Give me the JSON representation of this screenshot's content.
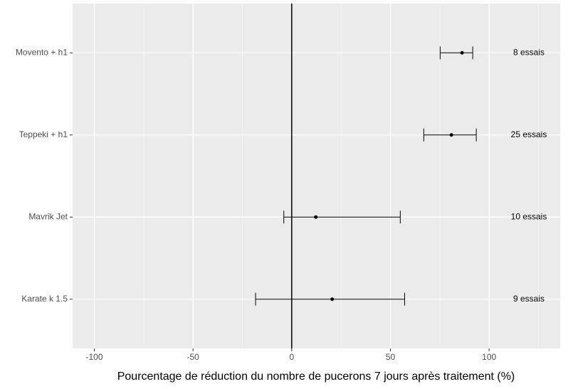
{
  "chart_data": {
    "type": "errorbar",
    "x_label": "Pourcentage de réduction du nombre de pucerons 7 jours après traitement (%)",
    "categories": [
      "Movento + h1",
      "Teppeki + h1",
      "Mavrik Jet",
      "Karate k 1.5"
    ],
    "values": [
      86.3,
      80.9,
      12.2,
      20.5
    ],
    "lower": [
      75.2,
      66.9,
      -4,
      -18.3
    ],
    "upper": [
      91.7,
      93.5,
      55,
      57.2
    ],
    "annotations": [
      "8 essais",
      "25 essais",
      "10 essais",
      "9 essais"
    ],
    "xlim": [
      -111,
      136
    ],
    "xticks": [
      -100,
      -50,
      0,
      50,
      100
    ],
    "minor_xticks": [
      -75,
      -25,
      25,
      75,
      125
    ],
    "reference_line": 0,
    "grid": true,
    "color": "#000000"
  }
}
